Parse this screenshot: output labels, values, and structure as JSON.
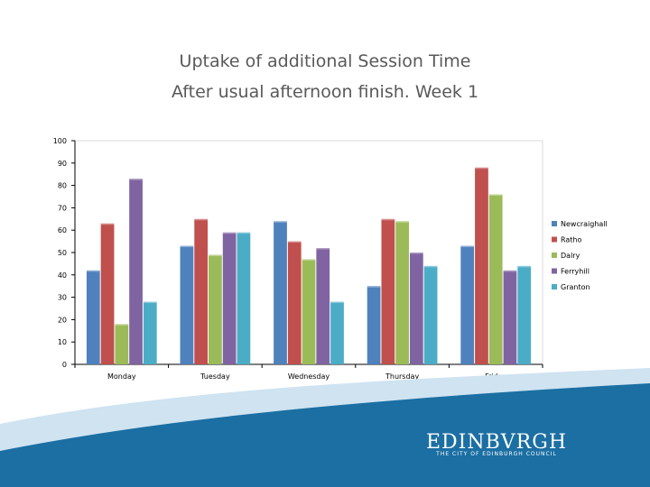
{
  "title_line1": "Uptake of additional Session Time",
  "title_line2": "After usual afternoon finish.  Week 1",
  "colors": {
    "Newcraighall": "#4f81bd",
    "Ratho": "#c0504d",
    "Dalry": "#9bbb59",
    "Ferryhill": "#8064a2",
    "Granton": "#4bacc6",
    "wave_dark": "#1b6fa3",
    "wave_light": "#cfe3f1"
  },
  "chart_data": {
    "type": "bar",
    "categories": [
      "Monday",
      "Tuesday",
      "Wednesday",
      "Thursday",
      "Friday"
    ],
    "series": [
      {
        "name": "Newcraighall",
        "values": [
          42,
          53,
          64,
          35,
          53
        ]
      },
      {
        "name": "Ratho",
        "values": [
          63,
          65,
          55,
          65,
          88
        ]
      },
      {
        "name": "Dalry",
        "values": [
          18,
          49,
          47,
          64,
          76
        ]
      },
      {
        "name": "Ferryhill",
        "values": [
          83,
          59,
          52,
          50,
          42
        ]
      },
      {
        "name": "Granton",
        "values": [
          28,
          59,
          28,
          44,
          44
        ]
      }
    ],
    "ylim": [
      0,
      100
    ],
    "yticks": [
      0,
      10,
      20,
      30,
      40,
      50,
      60,
      70,
      80,
      90,
      100
    ],
    "grid": false,
    "legend": "right"
  },
  "logo": {
    "wordmark": "EDINBVRGH",
    "subtitle": "THE CITY OF EDINBURGH COUNCIL"
  }
}
